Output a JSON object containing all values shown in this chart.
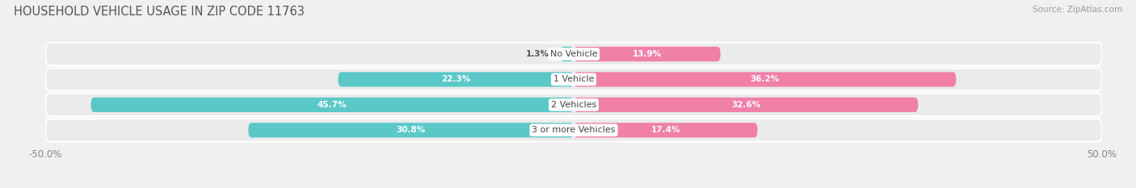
{
  "title": "HOUSEHOLD VEHICLE USAGE IN ZIP CODE 11763",
  "source": "Source: ZipAtlas.com",
  "categories": [
    "No Vehicle",
    "1 Vehicle",
    "2 Vehicles",
    "3 or more Vehicles"
  ],
  "owner_values": [
    1.3,
    22.3,
    45.7,
    30.8
  ],
  "renter_values": [
    13.9,
    36.2,
    32.6,
    17.4
  ],
  "owner_color": "#5BC8C8",
  "renter_color": "#F080A8",
  "xlim": 50.0,
  "background_color": "#f0f0f0",
  "bar_background_color": "#e0e0e0",
  "row_background_color": "#ebebeb",
  "bar_height": 0.58,
  "title_fontsize": 10.5,
  "label_fontsize": 8.0,
  "value_fontsize": 7.5,
  "tick_fontsize": 8.5,
  "source_fontsize": 7.5,
  "legend_fontsize": 8.5
}
